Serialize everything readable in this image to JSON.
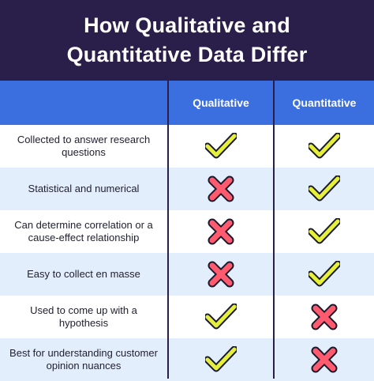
{
  "title": "How Qualitative and Quantitative Data Differ",
  "columns": [
    "Qualitative",
    "Quantitative"
  ],
  "rows": [
    {
      "label": "Collected to answer research questions",
      "qualitative": "check",
      "quantitative": "check"
    },
    {
      "label": "Statistical and numerical",
      "qualitative": "cross",
      "quantitative": "check"
    },
    {
      "label": "Can determine correlation or a cause-effect relationship",
      "qualitative": "cross",
      "quantitative": "check"
    },
    {
      "label": "Easy to collect en masse",
      "qualitative": "cross",
      "quantitative": "check"
    },
    {
      "label": "Used to come up with a hypothesis",
      "qualitative": "check",
      "quantitative": "cross"
    },
    {
      "label": "Best for understanding customer opinion nuances",
      "qualitative": "check",
      "quantitative": "cross"
    }
  ],
  "colors": {
    "header_bg": "#2a1f4a",
    "column_header_bg": "#3b6fe0",
    "row_alt_bg": "#e3eefc",
    "check": "#e6f03a",
    "cross": "#ff5a6e",
    "outline": "#1a1a2e"
  },
  "icons": {
    "check": "checkmark-icon",
    "cross": "cross-icon"
  }
}
